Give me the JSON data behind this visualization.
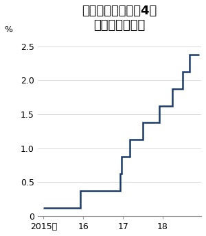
{
  "title": "米政策金利は今年4度\n引き上げられた",
  "ylabel": "%",
  "line_color": "#1a3a6b",
  "line_width": 1.8,
  "background_color": "#ffffff",
  "ylim": [
    0,
    2.65
  ],
  "yticks": [
    0,
    0.5,
    1.0,
    1.5,
    2.0,
    2.5
  ],
  "ytick_labels": [
    "0",
    "0.5",
    "1.0",
    "1.5",
    "2.0",
    "2.5"
  ],
  "rate_dates": [
    2015.0,
    2015.92,
    2015.92,
    2016.92,
    2016.92,
    2016.96,
    2016.96,
    2017.17,
    2017.17,
    2017.5,
    2017.5,
    2017.92,
    2017.92,
    2018.25,
    2018.25,
    2018.5,
    2018.5,
    2018.67,
    2018.67,
    2018.92
  ],
  "rate_values": [
    0.125,
    0.125,
    0.375,
    0.375,
    0.625,
    0.625,
    0.875,
    0.875,
    1.125,
    1.125,
    1.375,
    1.375,
    1.625,
    1.625,
    1.875,
    1.875,
    2.125,
    2.125,
    2.375,
    2.375
  ],
  "xticks": [
    2015,
    2016,
    2017,
    2018
  ],
  "xtick_labels": [
    "2015年",
    "16",
    "17",
    "18"
  ],
  "title_fontsize": 13,
  "tick_fontsize": 9,
  "ylabel_fontsize": 9
}
